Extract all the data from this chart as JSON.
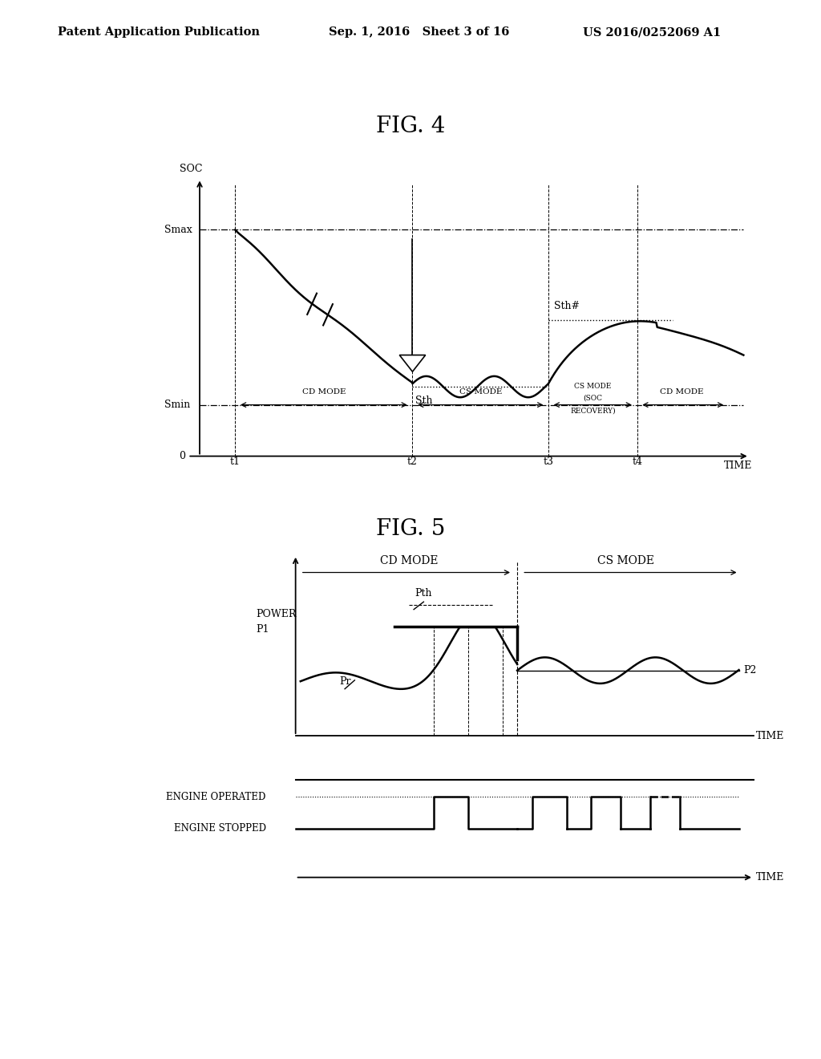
{
  "title_fig4": "FIG. 4",
  "title_fig5": "FIG. 5",
  "header_left": "Patent Application Publication",
  "header_mid": "Sep. 1, 2016   Sheet 3 of 16",
  "header_right": "US 2016/0252069 A1",
  "background_color": "#ffffff",
  "fig4": {
    "ylabel": "SOC",
    "xlabel": "TIME",
    "smax_label": "Smax",
    "smin_label": "Smin",
    "sth_label": "Sth",
    "sth_hash_label": "Sth#",
    "t_labels": [
      "t1",
      "t2",
      "t3",
      "t4"
    ],
    "mode_labels": [
      "CD MODE",
      "CS MODE",
      "CS MODE",
      "CD MODE"
    ],
    "soc_label": "SOC"
  },
  "fig5": {
    "ylabel_power": "POWER",
    "xlabel": "TIME",
    "p1_label": "P1",
    "p2_label": "P2",
    "pth_label": "Pth",
    "pr_label": "Pr",
    "cd_mode_label": "CD MODE",
    "cs_mode_label": "CS MODE",
    "engine_operated": "ENGINE OPERATED",
    "engine_stopped": "ENGINE STOPPED"
  }
}
